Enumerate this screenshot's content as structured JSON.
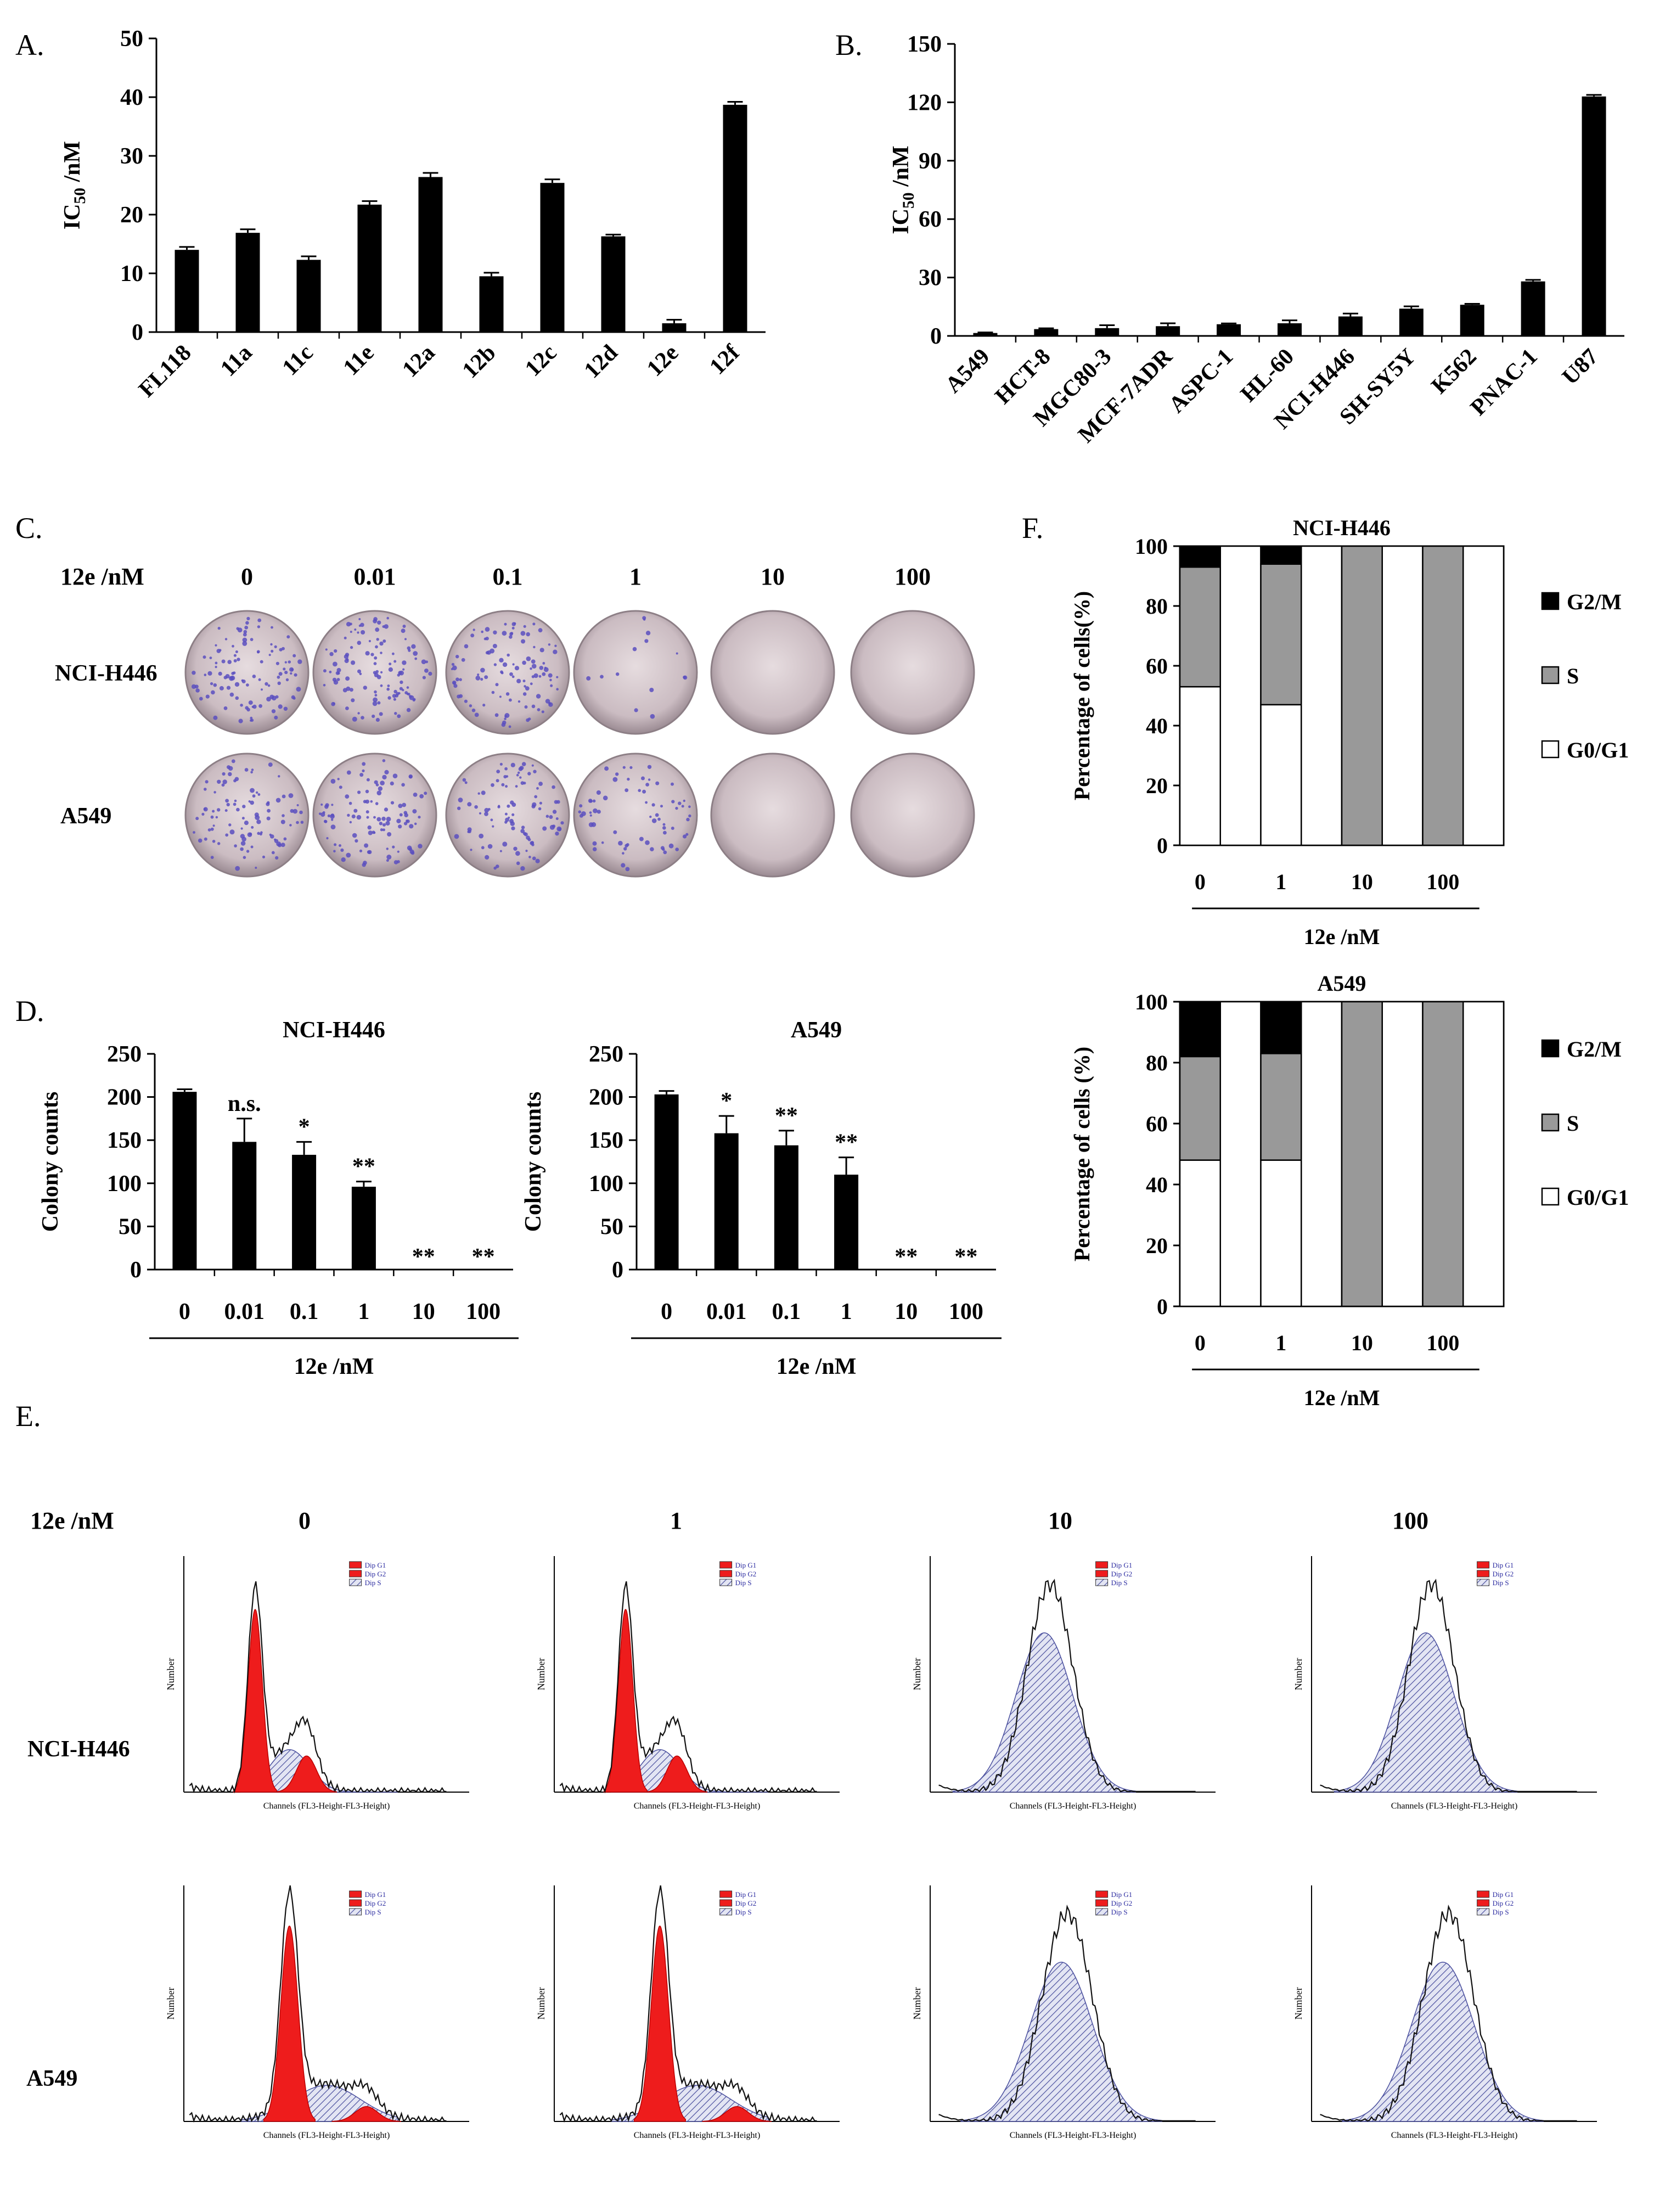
{
  "panels": {
    "A": {
      "label": "A."
    },
    "B": {
      "label": "B."
    },
    "C": {
      "label": "C."
    },
    "D": {
      "label": "D."
    },
    "E": {
      "label": "E."
    },
    "F": {
      "label": "F."
    }
  },
  "plates": {
    "dose_label": "12e /nM",
    "doses": [
      "0",
      "0.01",
      "0.1",
      "1",
      "10",
      "100"
    ],
    "rows": [
      "NCI-H446",
      "A549"
    ],
    "colony_density": [
      [
        110,
        120,
        110,
        14,
        0,
        0
      ],
      [
        100,
        110,
        100,
        70,
        0,
        0
      ]
    ]
  },
  "flow": {
    "dose_label": "12e /nM",
    "doses": [
      "0",
      "1",
      "10",
      "100"
    ],
    "rows": [
      "NCI-H446",
      "A549"
    ],
    "xlabel_h446": "Channels (FL3-Height-FL3-Height)",
    "xlabel_a549": "Channels (FL3-Height-FL3-Height)",
    "ylabel": "Number",
    "legend": [
      "Dip G1",
      "Dip G2",
      "Dip S"
    ]
  },
  "chart_data": [
    {
      "id": "A",
      "type": "bar",
      "title": "",
      "ylabel_main": "IC",
      "ylabel_sub": "50",
      "ylabel_unit": " /nM",
      "xlabel": "",
      "categories": [
        "FL118",
        "11a",
        "11c",
        "11e",
        "12a",
        "12b",
        "12c",
        "12d",
        "12e",
        "12f"
      ],
      "values": [
        14,
        16.9,
        12.3,
        21.7,
        26.4,
        9.5,
        25.4,
        16.3,
        1.5,
        38.7
      ],
      "errors": [
        0.5,
        0.6,
        0.6,
        0.6,
        0.7,
        0.6,
        0.6,
        0.3,
        0.6,
        0.5
      ],
      "ylim": [
        0,
        50
      ],
      "yticks": [
        0,
        10,
        20,
        30,
        40,
        50
      ]
    },
    {
      "id": "B",
      "type": "bar",
      "title": "",
      "ylabel_main": "IC",
      "ylabel_sub": "50",
      "ylabel_unit": " /nM",
      "xlabel": "",
      "categories": [
        "A549",
        "HCT-8",
        "MGC80-3",
        "MCF-7ADR",
        "ASPC-1",
        "HL-60",
        "NCI-H446",
        "SH-SY5Y",
        "K562",
        "PNAC-1",
        "U87"
      ],
      "values": [
        1.5,
        3.5,
        4,
        5,
        6,
        6.5,
        10,
        14,
        16,
        28,
        123
      ],
      "errors": [
        0.3,
        0.4,
        1.5,
        1.5,
        0.4,
        1.5,
        1.5,
        1.2,
        0.5,
        0.8,
        0.8
      ],
      "ylim": [
        0,
        150
      ],
      "yticks": [
        0,
        30,
        60,
        90,
        120,
        150
      ]
    },
    {
      "id": "D1",
      "type": "bar",
      "title": "NCI-H446",
      "ylabel": "Colony counts",
      "xlabel": "12e /nM",
      "categories": [
        "0",
        "0.01",
        "0.1",
        "1",
        "10",
        "100"
      ],
      "values": [
        206,
        148,
        133,
        96,
        0,
        0
      ],
      "errors": [
        3,
        27,
        15,
        6,
        0,
        0
      ],
      "annotations": [
        "",
        "n.s.",
        "*",
        "**",
        "**",
        "**"
      ],
      "ylim": [
        0,
        250
      ],
      "yticks": [
        0,
        50,
        100,
        150,
        200,
        250
      ]
    },
    {
      "id": "D2",
      "type": "bar",
      "title": "A549",
      "ylabel": "Colony counts",
      "xlabel": "12e /nM",
      "categories": [
        "0",
        "0.01",
        "0.1",
        "1",
        "10",
        "100"
      ],
      "values": [
        203,
        158,
        144,
        110,
        0,
        0
      ],
      "errors": [
        4,
        20,
        17,
        20,
        0,
        0
      ],
      "annotations": [
        "",
        "*",
        "**",
        "**",
        "**",
        "**"
      ],
      "ylim": [
        0,
        250
      ],
      "yticks": [
        0,
        50,
        100,
        150,
        200,
        250
      ]
    },
    {
      "id": "F1",
      "type": "bar",
      "stacked": true,
      "title": "NCI-H446",
      "ylabel": "Percentage of cells(%)",
      "xlabel": "12e /nM",
      "categories": [
        "0",
        "1",
        "10",
        "100"
      ],
      "series": [
        {
          "name": "G0/G1",
          "values": [
            53,
            47,
            0,
            0
          ]
        },
        {
          "name": "S",
          "values": [
            40,
            47,
            100,
            100
          ]
        },
        {
          "name": "G2/M",
          "values": [
            7,
            6,
            0,
            0
          ]
        }
      ],
      "legend_order": [
        "G2/M",
        "S",
        "G0/G1"
      ],
      "ylim": [
        0,
        100
      ],
      "yticks": [
        0,
        20,
        40,
        60,
        80,
        100
      ]
    },
    {
      "id": "F2",
      "type": "bar",
      "stacked": true,
      "title": "A549",
      "ylabel": "Percentage of cells (%)",
      "xlabel": "12e /nM",
      "categories": [
        "0",
        "1",
        "10",
        "100"
      ],
      "series": [
        {
          "name": "G0/G1",
          "values": [
            48,
            48,
            0,
            0
          ]
        },
        {
          "name": "S",
          "values": [
            34,
            35,
            100,
            100
          ]
        },
        {
          "name": "G2/M",
          "values": [
            18,
            17,
            0,
            0
          ]
        }
      ],
      "legend_order": [
        "G2/M",
        "S",
        "G0/G1"
      ],
      "ylim": [
        0,
        100
      ],
      "yticks": [
        0,
        20,
        40,
        60,
        80,
        100
      ]
    }
  ]
}
